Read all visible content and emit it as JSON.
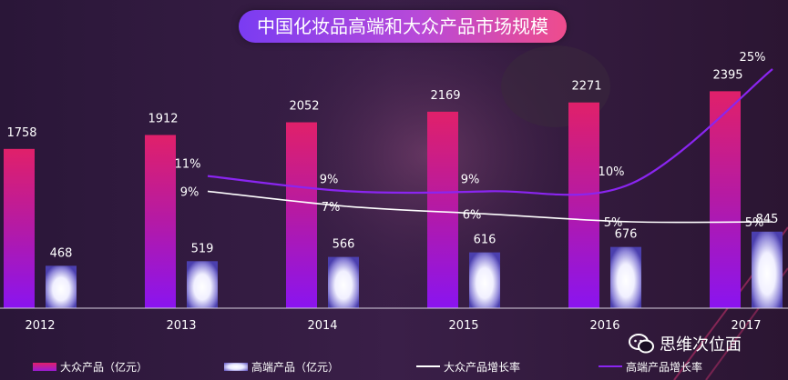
{
  "title": "中国化妆品高端和大众产品市场规模",
  "watermark": "思维次位面",
  "colors": {
    "mass_bar_top": "#e0206a",
    "mass_bar_bottom": "#8a14f0",
    "premium_bar_glow": "#ffffff",
    "premium_bar_edge": "#5a4cc0",
    "mass_growth_line": "#ffffff",
    "premium_growth_line": "#8a25f0",
    "background": "#1a0f24"
  },
  "legend": [
    {
      "label": "大众产品（亿元）",
      "kind": "bar-mass"
    },
    {
      "label": "高端产品（亿元）",
      "kind": "bar-premium"
    },
    {
      "label": "大众产品增长率",
      "kind": "line-mass"
    },
    {
      "label": "高端产品增长率",
      "kind": "line-premium"
    }
  ],
  "chart_data": {
    "type": "bar",
    "categories": [
      "2012",
      "2013",
      "2014",
      "2015",
      "2016",
      "2017"
    ],
    "series": [
      {
        "name": "大众产品（亿元）",
        "type": "bar",
        "values": [
          1758,
          1912,
          2052,
          2169,
          2271,
          2395
        ],
        "labels": [
          "1758",
          "1912",
          "2052",
          "2169",
          "2271",
          "2395"
        ]
      },
      {
        "name": "高端产品（亿元）",
        "type": "bar",
        "values": [
          468,
          519,
          566,
          616,
          676,
          845
        ],
        "labels": [
          "468",
          "519",
          "566",
          "616",
          "676",
          "845"
        ]
      },
      {
        "name": "大众产品增长率",
        "type": "line",
        "values": [
          null,
          9,
          7,
          6,
          5,
          5
        ],
        "labels": [
          "",
          "9%",
          "7%",
          "6%",
          "5%",
          "5%"
        ]
      },
      {
        "name": "高端产品增长率",
        "type": "line",
        "values": [
          null,
          11,
          9,
          9,
          10,
          25
        ],
        "labels": [
          "",
          "11%",
          "9%",
          "9%",
          "10%",
          "25%"
        ]
      }
    ],
    "ylim": [
      0,
      2800
    ],
    "grid": false,
    "legend_position": "bottom"
  }
}
